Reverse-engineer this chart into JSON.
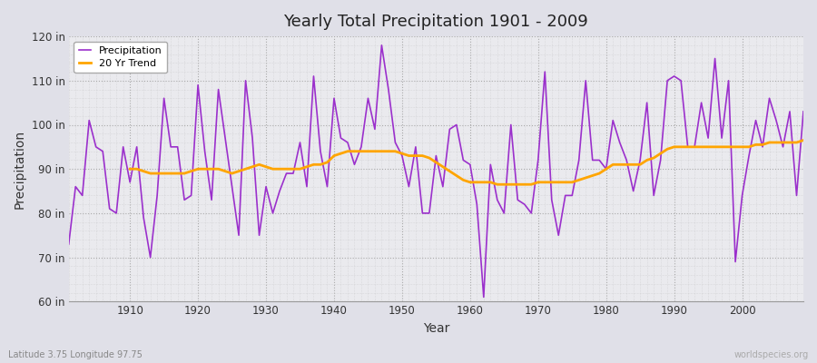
{
  "title": "Yearly Total Precipitation 1901 - 2009",
  "xlabel": "Year",
  "ylabel": "Precipitation",
  "subtitle": "Latitude 3.75 Longitude 97.75",
  "watermark": "worldspecies.org",
  "ylim": [
    60,
    120
  ],
  "yticks": [
    60,
    70,
    80,
    90,
    100,
    110,
    120
  ],
  "ytick_labels": [
    "60 in",
    "70 in",
    "80 in",
    "90 in",
    "100 in",
    "110 in",
    "120 in"
  ],
  "xlim": [
    1901,
    2009
  ],
  "xticks": [
    1910,
    1920,
    1930,
    1940,
    1950,
    1960,
    1970,
    1980,
    1990,
    2000
  ],
  "precip_color": "#9B30CC",
  "trend_color": "#FFA500",
  "fig_bg_color": "#E0E0E8",
  "plot_bg_color": "#EAEAEE",
  "years": [
    1901,
    1902,
    1903,
    1904,
    1905,
    1906,
    1907,
    1908,
    1909,
    1910,
    1911,
    1912,
    1913,
    1914,
    1915,
    1916,
    1917,
    1918,
    1919,
    1920,
    1921,
    1922,
    1923,
    1924,
    1925,
    1926,
    1927,
    1928,
    1929,
    1930,
    1931,
    1932,
    1933,
    1934,
    1935,
    1936,
    1937,
    1938,
    1939,
    1940,
    1941,
    1942,
    1943,
    1944,
    1945,
    1946,
    1947,
    1948,
    1949,
    1950,
    1951,
    1952,
    1953,
    1954,
    1955,
    1956,
    1957,
    1958,
    1959,
    1960,
    1961,
    1962,
    1963,
    1964,
    1965,
    1966,
    1967,
    1968,
    1969,
    1970,
    1971,
    1972,
    1973,
    1974,
    1975,
    1976,
    1977,
    1978,
    1979,
    1980,
    1981,
    1982,
    1983,
    1984,
    1985,
    1986,
    1987,
    1988,
    1989,
    1990,
    1991,
    1992,
    1993,
    1994,
    1995,
    1996,
    1997,
    1998,
    1999,
    2000,
    2001,
    2002,
    2003,
    2004,
    2005,
    2006,
    2007,
    2008,
    2009
  ],
  "precip": [
    73,
    86,
    84,
    101,
    95,
    94,
    81,
    80,
    95,
    87,
    95,
    79,
    70,
    84,
    106,
    95,
    95,
    83,
    84,
    109,
    94,
    83,
    108,
    97,
    86,
    75,
    110,
    97,
    75,
    86,
    80,
    85,
    89,
    89,
    96,
    86,
    111,
    94,
    86,
    106,
    97,
    96,
    91,
    95,
    106,
    99,
    118,
    108,
    96,
    93,
    86,
    95,
    80,
    80,
    93,
    86,
    99,
    100,
    92,
    91,
    82,
    61,
    91,
    83,
    80,
    100,
    83,
    82,
    80,
    92,
    112,
    83,
    75,
    84,
    84,
    92,
    110,
    92,
    92,
    90,
    101,
    96,
    92,
    85,
    92,
    105,
    84,
    92,
    110,
    111,
    110,
    95,
    95,
    105,
    97,
    115,
    97,
    110,
    69,
    84,
    93,
    101,
    95,
    106,
    101,
    95,
    103,
    84,
    103
  ],
  "trend_years": [
    1910,
    1911,
    1912,
    1913,
    1914,
    1915,
    1916,
    1917,
    1918,
    1919,
    1920,
    1921,
    1922,
    1923,
    1924,
    1925,
    1926,
    1927,
    1928,
    1929,
    1930,
    1931,
    1932,
    1933,
    1934,
    1935,
    1936,
    1937,
    1938,
    1939,
    1940,
    1941,
    1942,
    1943,
    1944,
    1945,
    1946,
    1947,
    1948,
    1949,
    1950,
    1951,
    1952,
    1953,
    1954,
    1955,
    1956,
    1957,
    1958,
    1959,
    1960,
    1961,
    1962,
    1963,
    1964,
    1965,
    1966,
    1967,
    1968,
    1969,
    1970,
    1971,
    1972,
    1973,
    1974,
    1975,
    1976,
    1977,
    1978,
    1979,
    1980,
    1981,
    1982,
    1983,
    1984,
    1985,
    1986,
    1987,
    1988,
    1989,
    1990,
    1991,
    1992,
    1993,
    1994,
    1995,
    1996,
    1997,
    1998,
    1999,
    2000,
    2001,
    2002,
    2003,
    2004,
    2005,
    2006,
    2007,
    2008,
    2009
  ],
  "trend": [
    90.0,
    90.0,
    89.5,
    89.0,
    89.0,
    89.0,
    89.0,
    89.0,
    89.0,
    89.5,
    90.0,
    90.0,
    90.0,
    90.0,
    89.5,
    89.0,
    89.5,
    90.0,
    90.5,
    91.0,
    90.5,
    90.0,
    90.0,
    90.0,
    90.0,
    90.0,
    90.5,
    91.0,
    91.0,
    91.5,
    93.0,
    93.5,
    94.0,
    94.0,
    94.0,
    94.0,
    94.0,
    94.0,
    94.0,
    94.0,
    93.5,
    93.0,
    93.0,
    93.0,
    92.5,
    91.5,
    90.5,
    89.5,
    88.5,
    87.5,
    87.0,
    87.0,
    87.0,
    87.0,
    86.5,
    86.5,
    86.5,
    86.5,
    86.5,
    86.5,
    87.0,
    87.0,
    87.0,
    87.0,
    87.0,
    87.0,
    87.5,
    88.0,
    88.5,
    89.0,
    90.0,
    91.0,
    91.0,
    91.0,
    91.0,
    91.0,
    92.0,
    92.5,
    93.5,
    94.5,
    95.0,
    95.0,
    95.0,
    95.0,
    95.0,
    95.0,
    95.0,
    95.0,
    95.0,
    95.0,
    95.0,
    95.0,
    95.5,
    95.5,
    96.0,
    96.0,
    96.0,
    96.0,
    96.0,
    96.5
  ]
}
